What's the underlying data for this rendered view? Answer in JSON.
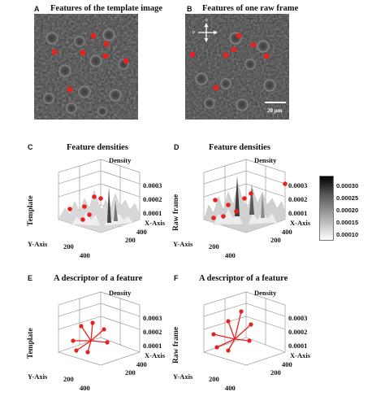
{
  "panels": {
    "A": {
      "letter": "A",
      "title": "Features of the template image"
    },
    "B": {
      "letter": "B",
      "title": "Features of one raw frame",
      "scalebar": "20 μm",
      "compass": {
        "top": "D",
        "left": "P"
      }
    },
    "C": {
      "letter": "C",
      "title": "Feature densities",
      "zlabel": "Density",
      "xlabel": "X-Axis",
      "ylabel": "Y-Axis",
      "side_label": "Template",
      "z_ticks": [
        "0.0003",
        "0.0002",
        "0.0001"
      ],
      "x_ticks": [
        "200",
        "400"
      ],
      "y_ticks": [
        "200",
        "400"
      ]
    },
    "D": {
      "letter": "D",
      "title": "Feature densities",
      "zlabel": "Density",
      "xlabel": "X-Axis",
      "ylabel": "Y-Axis",
      "side_label": "Raw frame",
      "z_ticks": [
        "0.0003",
        "0.0002",
        "0.0001"
      ],
      "x_ticks": [
        "200",
        "400"
      ],
      "y_ticks": [
        "200",
        "400"
      ]
    },
    "E": {
      "letter": "E",
      "title": "A descriptor of a feature",
      "zlabel": "Density",
      "xlabel": "X-Axis",
      "ylabel": "Y-Axis",
      "side_label": "Template",
      "z_ticks": [
        "0.0003",
        "0.0002",
        "0.0001"
      ],
      "x_ticks": [
        "200",
        "400"
      ],
      "y_ticks": [
        "200",
        "400"
      ]
    },
    "F": {
      "letter": "F",
      "title": "A descriptor of a feature",
      "zlabel": "Density",
      "xlabel": "X-Axis",
      "ylabel": "Y-Axis",
      "side_label": "Raw frame",
      "z_ticks": [
        "0.0003",
        "0.0002",
        "0.0001"
      ],
      "x_ticks": [
        "200",
        "400"
      ],
      "y_ticks": [
        "200",
        "400"
      ]
    }
  },
  "colorbar": {
    "ticks": [
      "0.00030",
      "0.00025",
      "0.00020",
      "0.00015",
      "0.00010"
    ]
  },
  "colors": {
    "feature_marker": "#e8201f",
    "descriptor_line": "#e8201f"
  }
}
